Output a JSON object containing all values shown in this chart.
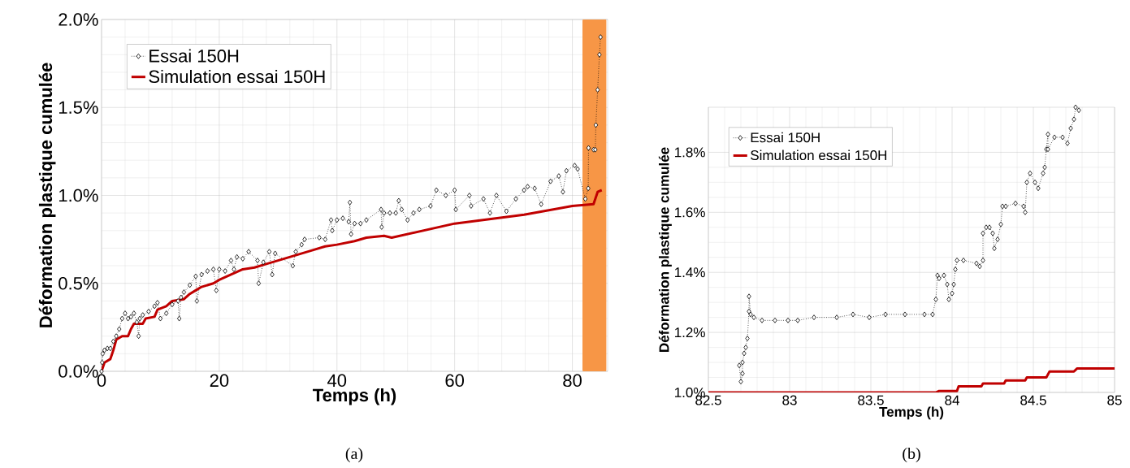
{
  "chart_data": [
    {
      "type": "line",
      "xlabel": "Temps (h)",
      "ylabel": "Déformation plastique cumulée",
      "annotations": [
        "(a)"
      ],
      "xlim": [
        0,
        86
      ],
      "xticks": [
        0,
        20,
        40,
        60,
        80
      ],
      "ylim": [
        0,
        2.0
      ],
      "yticks": [
        {
          "value": 0,
          "label": "0.0%"
        },
        {
          "value": 0.5,
          "label": "0.5%"
        },
        {
          "value": 1.0,
          "label": "1.0%"
        },
        {
          "value": 1.5,
          "label": "1.5%"
        },
        {
          "value": 2.0,
          "label": "2.0%"
        }
      ],
      "grid": true,
      "legend": "top left",
      "bands": [
        {
          "axis": "x",
          "from": 82,
          "to": 85.5,
          "color": "#f79646"
        }
      ],
      "series": [
        {
          "name": "Essai 150H",
          "color": "#000000",
          "marker": "diamond",
          "line_style": "dotted",
          "x": [
            0,
            0.1,
            0.2,
            0.5,
            1,
            1.5,
            2,
            2.5,
            3,
            3.5,
            4,
            4.5,
            5,
            5.5,
            6,
            6.3,
            6.5,
            7,
            8,
            9,
            9.5,
            10,
            11,
            12,
            13,
            13.2,
            13.5,
            14,
            15,
            16,
            16.2,
            17,
            18,
            19,
            19.5,
            20,
            21,
            22,
            22.5,
            23,
            24,
            25,
            26.5,
            26.7,
            27.5,
            28.5,
            29,
            29.5,
            32.5,
            33,
            34,
            34.5,
            37,
            38,
            39,
            39.2,
            40,
            41,
            42,
            42.2,
            42.4,
            43,
            44,
            45,
            47.5,
            47.6,
            48,
            49,
            50,
            50.5,
            51,
            52,
            53,
            54,
            55.9,
            56.9,
            58.5,
            60,
            60.2,
            62.5,
            62.8,
            64.9,
            66,
            67.1,
            68.8,
            70.4,
            71.8,
            72.4,
            73.6,
            74.7,
            76.3,
            77.7,
            78.4,
            79,
            80.4,
            80.9,
            82.2,
            82.7,
            82.75,
            83.6,
            83.9,
            84,
            84.3,
            84.6,
            84.8
          ],
          "values": [
            0,
            0.05,
            0.1,
            0.12,
            0.13,
            0.13,
            0.17,
            0.2,
            0.24,
            0.3,
            0.33,
            0.3,
            0.31,
            0.33,
            0.28,
            0.2,
            0.3,
            0.32,
            0.34,
            0.37,
            0.39,
            0.3,
            0.33,
            0.38,
            0.4,
            0.3,
            0.42,
            0.45,
            0.49,
            0.54,
            0.4,
            0.55,
            0.57,
            0.58,
            0.46,
            0.58,
            0.57,
            0.63,
            0.58,
            0.65,
            0.64,
            0.68,
            0.63,
            0.5,
            0.62,
            0.68,
            0.55,
            0.67,
            0.6,
            0.68,
            0.72,
            0.75,
            0.76,
            0.75,
            0.86,
            0.8,
            0.86,
            0.87,
            0.85,
            0.96,
            0.78,
            0.84,
            0.84,
            0.86,
            0.92,
            0.82,
            0.9,
            0.9,
            0.9,
            0.97,
            0.92,
            0.86,
            0.9,
            0.92,
            0.94,
            1.03,
            1.0,
            1.03,
            0.92,
            1.0,
            0.94,
            0.98,
            0.9,
            1.0,
            0.91,
            0.98,
            1.03,
            1.05,
            1.04,
            0.95,
            1.08,
            1.11,
            1.02,
            1.14,
            1.17,
            1.15,
            0.98,
            1.04,
            1.27,
            1.26,
            1.26,
            1.4,
            1.6,
            1.8,
            1.9
          ]
        },
        {
          "name": "Simulation essai 150H",
          "color": "#c00000",
          "marker": "none",
          "line_style": "solid",
          "x": [
            0,
            0.5,
            1.5,
            2,
            2.5,
            3.5,
            4.5,
            5,
            5.5,
            7,
            7.5,
            9,
            9.5,
            11,
            12,
            14,
            15,
            16,
            17,
            19,
            20,
            22,
            24,
            26,
            28,
            30,
            33,
            36,
            38,
            40,
            43,
            45,
            48,
            49.3,
            60,
            71.8,
            80,
            83.6,
            84.3,
            85
          ],
          "values": [
            0,
            0.05,
            0.07,
            0.12,
            0.18,
            0.2,
            0.2,
            0.24,
            0.27,
            0.27,
            0.3,
            0.31,
            0.35,
            0.37,
            0.4,
            0.41,
            0.44,
            0.46,
            0.48,
            0.5,
            0.52,
            0.55,
            0.58,
            0.59,
            0.61,
            0.63,
            0.66,
            0.69,
            0.71,
            0.72,
            0.74,
            0.76,
            0.77,
            0.76,
            0.84,
            0.89,
            0.94,
            0.95,
            1.02,
            1.03
          ]
        }
      ]
    },
    {
      "type": "line",
      "xlabel": "Temps (h)",
      "ylabel": "Déformation plastique cumulée",
      "annotations": [
        "(b)"
      ],
      "xlim": [
        82.5,
        85
      ],
      "xticks": [
        82.5,
        83,
        83.5,
        84,
        84.5,
        85
      ],
      "ylim": [
        1.0,
        1.95
      ],
      "yticks": [
        {
          "value": 1.0,
          "label": "1.0%"
        },
        {
          "value": 1.2,
          "label": "1.2%"
        },
        {
          "value": 1.4,
          "label": "1.4%"
        },
        {
          "value": 1.6,
          "label": "1.6%"
        },
        {
          "value": 1.8,
          "label": "1.8%"
        }
      ],
      "grid": true,
      "legend": "top left",
      "series": [
        {
          "name": "Essai 150H",
          "color": "#000000",
          "marker": "diamond",
          "line_style": "dotted",
          "x": [
            82.69,
            82.7,
            82.71,
            82.71,
            82.72,
            82.73,
            82.74,
            82.75,
            82.75,
            82.76,
            82.78,
            82.83,
            82.91,
            82.99,
            83.05,
            83.15,
            83.29,
            83.39,
            83.49,
            83.59,
            83.71,
            83.83,
            83.88,
            83.9,
            83.91,
            83.92,
            83.95,
            83.97,
            83.98,
            84.0,
            84.01,
            84.02,
            84.03,
            84.07,
            84.15,
            84.17,
            84.19,
            84.19,
            84.21,
            84.23,
            84.25,
            84.26,
            84.28,
            84.3,
            84.31,
            84.33,
            84.39,
            84.44,
            84.45,
            84.46,
            84.48,
            84.51,
            84.53,
            84.56,
            84.57,
            84.58,
            84.59,
            84.59,
            84.63,
            84.68,
            84.71,
            84.73,
            84.75,
            84.76,
            84.78
          ],
          "values": [
            1.09,
            1.036,
            1.063,
            1.1,
            1.13,
            1.15,
            1.18,
            1.27,
            1.32,
            1.26,
            1.25,
            1.24,
            1.24,
            1.24,
            1.24,
            1.25,
            1.25,
            1.26,
            1.25,
            1.26,
            1.26,
            1.26,
            1.26,
            1.31,
            1.39,
            1.38,
            1.39,
            1.36,
            1.31,
            1.33,
            1.36,
            1.41,
            1.44,
            1.44,
            1.43,
            1.42,
            1.44,
            1.53,
            1.55,
            1.55,
            1.53,
            1.48,
            1.51,
            1.56,
            1.62,
            1.62,
            1.63,
            1.62,
            1.6,
            1.7,
            1.73,
            1.7,
            1.68,
            1.73,
            1.75,
            1.81,
            1.86,
            1.81,
            1.85,
            1.85,
            1.83,
            1.88,
            1.91,
            1.95,
            1.94
          ]
        },
        {
          "name": "Simulation essai 150H",
          "color": "#c00000",
          "marker": "none",
          "line_style": "solid",
          "x": [
            82.5,
            83.9,
            83.92,
            84.03,
            84.04,
            84.18,
            84.19,
            84.32,
            84.33,
            84.45,
            84.46,
            84.58,
            84.6,
            84.75,
            84.77,
            85
          ],
          "values": [
            1.0,
            1.0,
            1.005,
            1.005,
            1.02,
            1.02,
            1.03,
            1.03,
            1.04,
            1.04,
            1.05,
            1.05,
            1.07,
            1.07,
            1.08,
            1.08
          ]
        }
      ]
    }
  ]
}
